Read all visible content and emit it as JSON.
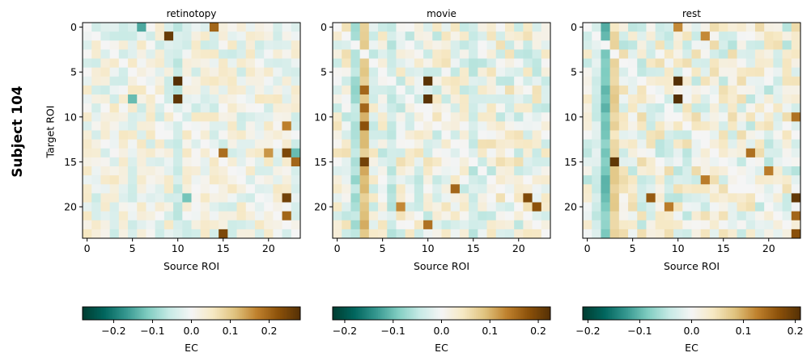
{
  "figure": {
    "subject_label": "Subject 104"
  },
  "chart_data": [
    {
      "type": "heatmap",
      "title": "retinotopy",
      "xlabel": "Source ROI",
      "ylabel": "Target ROI",
      "n": 24,
      "xticks": [
        0,
        5,
        10,
        15,
        20
      ],
      "yticks": [
        0,
        5,
        10,
        15,
        20
      ],
      "colormap": "BrBG_r",
      "colorbar": {
        "label": "EC",
        "vmin": -0.28,
        "vmax": 0.28,
        "ticks": [
          -0.2,
          -0.1,
          0.0,
          0.1,
          0.2
        ],
        "ticklabels": [
          "−0.2",
          "−0.1",
          "0.0",
          "0.1",
          "0.2"
        ]
      },
      "hotspots": [
        {
          "row": 1,
          "col": 9,
          "value": 0.26
        },
        {
          "row": 6,
          "col": 10,
          "value": 0.28
        },
        {
          "row": 8,
          "col": 10,
          "value": 0.27
        },
        {
          "row": 0,
          "col": 14,
          "value": 0.2
        },
        {
          "row": 14,
          "col": 20,
          "value": 0.15
        },
        {
          "row": 14,
          "col": 22,
          "value": 0.24
        },
        {
          "row": 15,
          "col": 23,
          "value": 0.2
        },
        {
          "row": 14,
          "col": 15,
          "value": 0.19
        },
        {
          "row": 19,
          "col": 22,
          "value": 0.25
        },
        {
          "row": 21,
          "col": 22,
          "value": 0.2
        },
        {
          "row": 23,
          "col": 15,
          "value": 0.24
        },
        {
          "row": 11,
          "col": 22,
          "value": 0.17
        },
        {
          "row": 0,
          "col": 6,
          "value": -0.15
        },
        {
          "row": 19,
          "col": 11,
          "value": -0.12
        },
        {
          "row": 8,
          "col": 5,
          "value": -0.13
        },
        {
          "row": 14,
          "col": 23,
          "value": -0.13
        }
      ],
      "column_bias": [
        {
          "col": 10,
          "value": -0.05
        }
      ]
    },
    {
      "type": "heatmap",
      "title": "movie",
      "xlabel": "Source ROI",
      "ylabel": "",
      "n": 24,
      "xticks": [
        0,
        5,
        10,
        15,
        20
      ],
      "yticks": [
        0,
        5,
        10,
        15,
        20
      ],
      "colormap": "BrBG_r",
      "colorbar": {
        "label": "EC",
        "vmin": -0.225,
        "vmax": 0.225,
        "ticks": [
          -0.2,
          -0.1,
          0.0,
          0.1,
          0.2
        ],
        "ticklabels": [
          "−0.2",
          "−0.1",
          "0.0",
          "0.1",
          "0.2"
        ]
      },
      "hotspots": [
        {
          "row": 6,
          "col": 10,
          "value": 0.22
        },
        {
          "row": 8,
          "col": 10,
          "value": 0.22
        },
        {
          "row": 7,
          "col": 3,
          "value": 0.16
        },
        {
          "row": 9,
          "col": 3,
          "value": 0.16
        },
        {
          "row": 11,
          "col": 3,
          "value": 0.18
        },
        {
          "row": 15,
          "col": 3,
          "value": 0.2
        },
        {
          "row": 18,
          "col": 13,
          "value": 0.16
        },
        {
          "row": 19,
          "col": 21,
          "value": 0.19
        },
        {
          "row": 20,
          "col": 22,
          "value": 0.18
        },
        {
          "row": 20,
          "col": 7,
          "value": 0.13
        },
        {
          "row": 22,
          "col": 10,
          "value": 0.15
        }
      ],
      "column_bias": [
        {
          "col": 3,
          "value": 0.09
        },
        {
          "col": 2,
          "value": -0.06
        },
        {
          "col": 6,
          "value": -0.04
        },
        {
          "col": 15,
          "value": -0.04
        }
      ]
    },
    {
      "type": "heatmap",
      "title": "rest",
      "xlabel": "Source ROI",
      "ylabel": "",
      "n": 24,
      "xticks": [
        0,
        5,
        10,
        15,
        20
      ],
      "yticks": [
        0,
        5,
        10,
        15,
        20
      ],
      "colormap": "BrBG_r",
      "colorbar": {
        "label": "EC",
        "vmin": -0.21,
        "vmax": 0.21,
        "ticks": [
          -0.2,
          -0.1,
          0.0,
          0.1,
          0.2
        ],
        "ticklabels": [
          "−0.2",
          "−0.1",
          "0.0",
          "0.1",
          "0.2"
        ]
      },
      "hotspots": [
        {
          "row": 6,
          "col": 10,
          "value": 0.21
        },
        {
          "row": 8,
          "col": 10,
          "value": 0.21
        },
        {
          "row": 15,
          "col": 3,
          "value": 0.2
        },
        {
          "row": 14,
          "col": 18,
          "value": 0.14
        },
        {
          "row": 16,
          "col": 20,
          "value": 0.13
        },
        {
          "row": 17,
          "col": 13,
          "value": 0.13
        },
        {
          "row": 19,
          "col": 7,
          "value": 0.16
        },
        {
          "row": 20,
          "col": 9,
          "value": 0.13
        },
        {
          "row": 19,
          "col": 23,
          "value": 0.2
        },
        {
          "row": 21,
          "col": 23,
          "value": 0.15
        },
        {
          "row": 23,
          "col": 23,
          "value": 0.17
        },
        {
          "row": 10,
          "col": 23,
          "value": 0.14
        },
        {
          "row": 0,
          "col": 10,
          "value": 0.12
        },
        {
          "row": 1,
          "col": 13,
          "value": 0.12
        }
      ],
      "column_bias": [
        {
          "col": 2,
          "value": -0.09
        },
        {
          "col": 3,
          "value": 0.06
        },
        {
          "col": 1,
          "value": -0.03
        }
      ]
    }
  ]
}
